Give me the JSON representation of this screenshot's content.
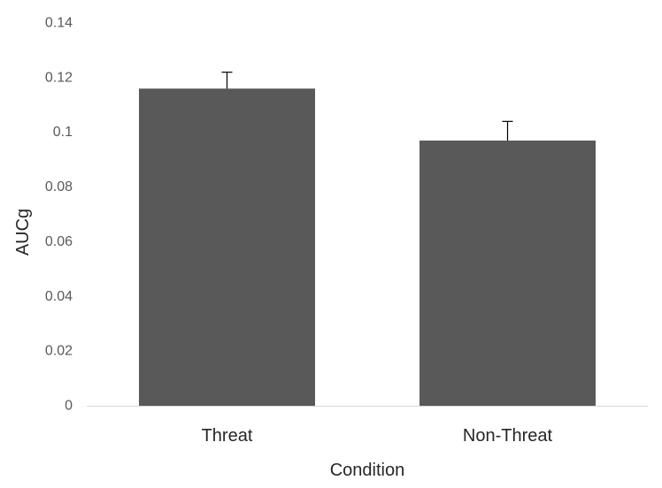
{
  "chart_data": {
    "type": "bar",
    "categories": [
      "Threat",
      "Non-Threat"
    ],
    "values": [
      0.116,
      0.097
    ],
    "error_upper": [
      0.122,
      0.104
    ],
    "xlabel": "Condition",
    "ylabel": "AUCg",
    "ylim": [
      0,
      0.14
    ],
    "yticks": [
      "0",
      "0.02",
      "0.04",
      "0.06",
      "0.08",
      "0.1",
      "0.12",
      "0.14"
    ],
    "grid": false,
    "legend": "none",
    "bar_color": "#595959",
    "axis_color": "#d9d9d9"
  }
}
